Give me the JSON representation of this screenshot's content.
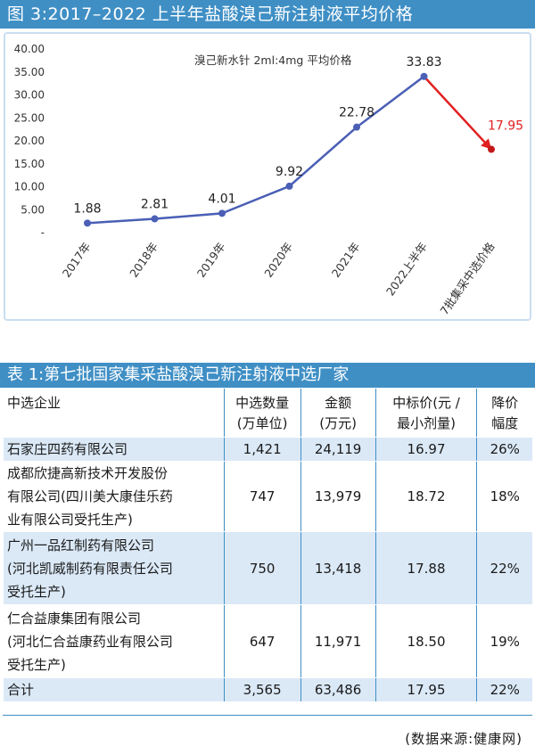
{
  "figure_title": "图 3:2017–2022 上半年盐酸溴己新注射液平均价格",
  "chart_data": {
    "type": "line",
    "title": "溴己新水针 2ml:4mg 平均价格",
    "categories": [
      "2017年",
      "2018年",
      "2019年",
      "2020年",
      "2021年",
      "2022上半年",
      "7批集采中选价格"
    ],
    "values": [
      1.88,
      2.81,
      4.01,
      9.92,
      22.78,
      33.83,
      17.95
    ],
    "value_labels": [
      "1.88",
      "2.81",
      "4.01",
      "9.92",
      "22.78",
      "33.83",
      "17.95"
    ],
    "ytick_labels": [
      "-",
      "5.00",
      "10.00",
      "15.00",
      "20.00",
      "25.00",
      "30.00",
      "35.00",
      "40.00"
    ],
    "ylim": [
      0,
      40
    ],
    "grid": false,
    "colors": {
      "main_line": "#4a5fb5",
      "highlight_line": "#e02020",
      "highlight_label": "#e02020"
    }
  },
  "table": {
    "title": "表 1:第七批国家集采盐酸溴己新注射液中选厂家",
    "headers": [
      [
        "中选企业"
      ],
      [
        "中选数量",
        "(万单位)"
      ],
      [
        "金额",
        "(万元)"
      ],
      [
        "中标价(元 /",
        "最小剂量)"
      ],
      [
        "降价",
        "幅度"
      ]
    ],
    "rows": [
      {
        "company": [
          "石家庄四药有限公司"
        ],
        "qty": "1,421",
        "amount": "24,119",
        "price": "16.97",
        "drop": "26%"
      },
      {
        "company": [
          "成都欣捷高新技术开发股份",
          "有限公司(四川美大康佳乐药",
          "业有限公司受托生产)"
        ],
        "qty": "747",
        "amount": "13,979",
        "price": "18.72",
        "drop": "18%"
      },
      {
        "company": [
          "广州一品红制药有限公司",
          "(河北凯威制药有限责任公司",
          "受托生产)"
        ],
        "qty": "750",
        "amount": "13,418",
        "price": "17.88",
        "drop": "22%"
      },
      {
        "company": [
          "仁合益康集团有限公司",
          "(河北仁合益康药业有限公司",
          "受托生产)"
        ],
        "qty": "647",
        "amount": "11,971",
        "price": "18.50",
        "drop": "19%"
      },
      {
        "company": [
          "合计"
        ],
        "qty": "3,565",
        "amount": "63,486",
        "price": "17.95",
        "drop": "22%"
      }
    ]
  },
  "source": "(数据来源:健康网)",
  "colors": {
    "header_blue": "#3f8fc5",
    "row_shade": "#dbe9f7"
  }
}
